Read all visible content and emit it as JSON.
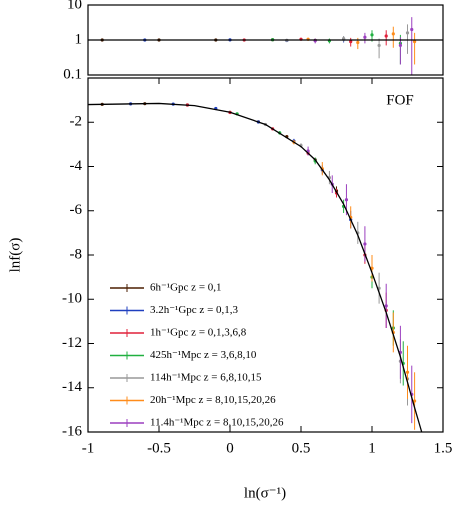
{
  "chart_data": [
    {
      "type": "scatter",
      "log_y": true,
      "ylim": [
        0.1,
        10
      ],
      "yticks": [
        0.1,
        1,
        10
      ],
      "xlim": [
        -1,
        1.5
      ],
      "reference": 1,
      "series": [
        {
          "color": "#4b1e00",
          "x": [
            -0.9,
            -0.5,
            -0.1,
            0.3,
            0.6
          ],
          "values": [
            1.0,
            1.0,
            1.0,
            1.02,
            0.98
          ],
          "errors": [
            0.02,
            0.02,
            0.03,
            0.05,
            0.1
          ]
        },
        {
          "color": "#1f3fbf",
          "x": [
            -0.6,
            0.0,
            0.4,
            0.8
          ],
          "values": [
            1.0,
            1.01,
            0.97,
            1.05
          ],
          "errors": [
            0.02,
            0.03,
            0.06,
            0.2
          ]
        },
        {
          "color": "#e0203a",
          "x": [
            0.1,
            0.5,
            0.85,
            1.1
          ],
          "values": [
            1.0,
            1.05,
            0.9,
            1.3
          ],
          "errors": [
            0.03,
            0.08,
            0.25,
            0.6
          ]
        },
        {
          "color": "#20b040",
          "x": [
            0.3,
            0.7,
            1.0,
            1.2
          ],
          "values": [
            1.02,
            0.95,
            1.4,
            0.8
          ],
          "errors": [
            0.05,
            0.15,
            0.5,
            0.6
          ]
        },
        {
          "color": "#999999",
          "x": [
            0.4,
            0.8,
            1.05,
            1.25
          ],
          "values": [
            0.98,
            1.1,
            0.7,
            1.6
          ],
          "errors": [
            0.06,
            0.2,
            0.4,
            1.2
          ]
        },
        {
          "color": "#ff8c1a",
          "x": [
            0.55,
            0.9,
            1.15,
            1.3
          ],
          "values": [
            1.05,
            0.85,
            1.5,
            0.9
          ],
          "errors": [
            0.1,
            0.3,
            0.9,
            0.7
          ]
        },
        {
          "color": "#9b3fbf",
          "x": [
            0.6,
            0.95,
            1.2,
            1.28
          ],
          "values": [
            0.95,
            1.2,
            0.7,
            2.0
          ],
          "errors": [
            0.15,
            0.4,
            0.5,
            2.5
          ]
        }
      ]
    },
    {
      "type": "scatter",
      "xlabel": "ln(σ⁻¹)",
      "ylabel": "lnf(σ)",
      "annotation": "FOF",
      "xlim": [
        -1,
        1.5
      ],
      "xticks": [
        -1,
        -0.5,
        0,
        0.5,
        1,
        1.5
      ],
      "ylim": [
        -16,
        0
      ],
      "yticks": [
        -16,
        -14,
        -12,
        -10,
        -8,
        -6,
        -4,
        -2
      ],
      "fit": {
        "color": "#000000",
        "x": [
          -1,
          -0.5,
          -0.25,
          0,
          0.25,
          0.5,
          0.6,
          0.7,
          0.8,
          0.9,
          1.0,
          1.1,
          1.2,
          1.3,
          1.35
        ],
        "values": [
          -1.2,
          -1.15,
          -1.25,
          -1.55,
          -2.1,
          -3.1,
          -3.7,
          -4.6,
          -5.7,
          -7.1,
          -8.8,
          -10.6,
          -12.6,
          -14.9,
          -16
        ]
      },
      "series": [
        {
          "name": "6h⁻¹Gpc z = 0,1",
          "color": "#4b1e00",
          "x": [
            -0.9,
            -0.6,
            -0.3,
            0,
            0.2,
            0.4,
            0.6,
            0.75
          ],
          "values": [
            -1.19,
            -1.16,
            -1.22,
            -1.55,
            -1.98,
            -2.65,
            -3.7,
            -5.1
          ],
          "errors": [
            0.05,
            0.05,
            0.05,
            0.05,
            0.05,
            0.05,
            0.1,
            0.2
          ]
        },
        {
          "name": "3.2h⁻¹Gpc z = 0,1,3",
          "color": "#1f3fbf",
          "x": [
            -0.7,
            -0.4,
            -0.1,
            0.2,
            0.45,
            0.65,
            0.85
          ],
          "values": [
            -1.17,
            -1.18,
            -1.38,
            -1.99,
            -2.85,
            -4.15,
            -6.4
          ],
          "errors": [
            0.05,
            0.05,
            0.05,
            0.05,
            0.1,
            0.2,
            0.4
          ]
        },
        {
          "name": "1h⁻¹Gpc z = 0,1,3,6,8",
          "color": "#e0203a",
          "x": [
            -0.3,
            0,
            0.3,
            0.55,
            0.75,
            0.95,
            1.1
          ],
          "values": [
            -1.22,
            -1.56,
            -2.3,
            -3.4,
            -5.2,
            -8.0,
            -10.5
          ],
          "errors": [
            0.05,
            0.05,
            0.05,
            0.1,
            0.2,
            0.4,
            0.8
          ]
        },
        {
          "name": "425h⁻¹Mpc z = 3,6,8,10",
          "color": "#20b040",
          "x": [
            0.05,
            0.35,
            0.6,
            0.8,
            1.0,
            1.15,
            1.22
          ],
          "values": [
            -1.62,
            -2.48,
            -3.75,
            -5.8,
            -9.0,
            -11.3,
            -12.9
          ],
          "errors": [
            0.05,
            0.08,
            0.15,
            0.3,
            0.5,
            0.8,
            1.0
          ]
        },
        {
          "name": "114h⁻¹Mpc z = 6,8,10,15",
          "color": "#999999",
          "x": [
            0.25,
            0.5,
            0.7,
            0.9,
            1.05,
            1.2,
            1.25
          ],
          "values": [
            -2.1,
            -3.05,
            -4.5,
            -7.0,
            -9.5,
            -12.8,
            -13.6
          ],
          "errors": [
            0.05,
            0.1,
            0.3,
            0.5,
            0.7,
            1,
            1.2
          ]
        },
        {
          "name": "20h⁻¹Mpc z = 8,10,15,20,26",
          "color": "#ff8c1a",
          "x": [
            0.45,
            0.65,
            0.85,
            1.0,
            1.15,
            1.25,
            1.3
          ],
          "values": [
            -2.9,
            -4.1,
            -6.3,
            -8.6,
            -11.5,
            -13.3,
            -14.6
          ],
          "errors": [
            0.1,
            0.3,
            0.5,
            0.6,
            0.9,
            1.2,
            1.3
          ]
        },
        {
          "name": "11.4h⁻¹Mpc z = 8,10,15,20,26",
          "color": "#9b3fbf",
          "x": [
            0.55,
            0.72,
            0.82,
            0.95,
            1.1,
            1.2,
            1.28
          ],
          "values": [
            -3.3,
            -4.8,
            -5.5,
            -7.5,
            -10.3,
            -12.4,
            -14.3
          ],
          "errors": [
            0.2,
            0.4,
            0.7,
            0.8,
            1,
            1.2,
            1.3
          ]
        }
      ]
    }
  ]
}
